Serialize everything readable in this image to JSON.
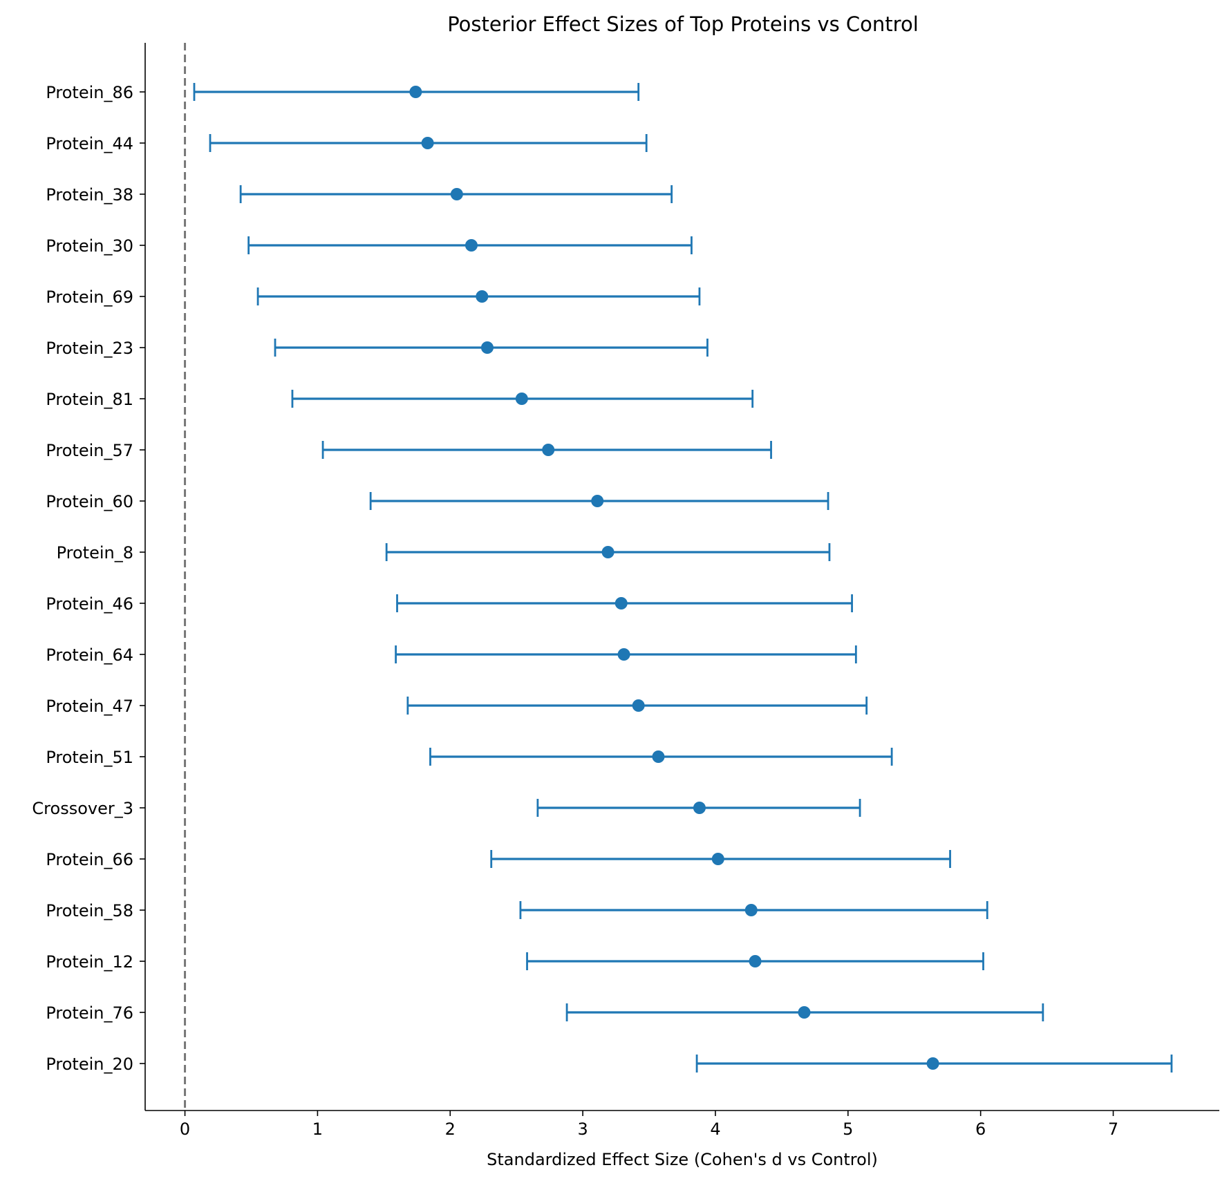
{
  "chart_data": {
    "type": "scatter",
    "title": "Posterior Effect Sizes of Top Proteins vs Control",
    "xlabel": "Standardized Effect Size (Cohen's d vs Control)",
    "ylabel": "",
    "xlim": [
      -0.3,
      7.8
    ],
    "xticks": [
      "0",
      "1",
      "2",
      "3",
      "4",
      "5",
      "6",
      "7"
    ],
    "reference_line": {
      "x": 0,
      "style": "dashed",
      "color": "#777777"
    },
    "grid": false,
    "legend": "none",
    "colors": {
      "series": "#1f77b4",
      "axis": "#000000"
    },
    "points": [
      {
        "label": "Protein_86",
        "mean": 1.74,
        "lower": 0.07,
        "upper": 3.42
      },
      {
        "label": "Protein_44",
        "mean": 1.83,
        "lower": 0.19,
        "upper": 3.48
      },
      {
        "label": "Protein_38",
        "mean": 2.05,
        "lower": 0.42,
        "upper": 3.67
      },
      {
        "label": "Protein_30",
        "mean": 2.16,
        "lower": 0.48,
        "upper": 3.82
      },
      {
        "label": "Protein_69",
        "mean": 2.24,
        "lower": 0.55,
        "upper": 3.88
      },
      {
        "label": "Protein_23",
        "mean": 2.28,
        "lower": 0.68,
        "upper": 3.94
      },
      {
        "label": "Protein_81",
        "mean": 2.54,
        "lower": 0.81,
        "upper": 4.28
      },
      {
        "label": "Protein_57",
        "mean": 2.74,
        "lower": 1.04,
        "upper": 4.42
      },
      {
        "label": "Protein_60",
        "mean": 3.11,
        "lower": 1.4,
        "upper": 4.85
      },
      {
        "label": "Protein_8",
        "mean": 3.19,
        "lower": 1.52,
        "upper": 4.86
      },
      {
        "label": "Protein_46",
        "mean": 3.29,
        "lower": 1.6,
        "upper": 5.03
      },
      {
        "label": "Protein_64",
        "mean": 3.31,
        "lower": 1.59,
        "upper": 5.06
      },
      {
        "label": "Protein_47",
        "mean": 3.42,
        "lower": 1.68,
        "upper": 5.14
      },
      {
        "label": "Protein_51",
        "mean": 3.57,
        "lower": 1.85,
        "upper": 5.33
      },
      {
        "label": "Crossover_3",
        "mean": 3.88,
        "lower": 2.66,
        "upper": 5.09
      },
      {
        "label": "Protein_66",
        "mean": 4.02,
        "lower": 2.31,
        "upper": 5.77
      },
      {
        "label": "Protein_58",
        "mean": 4.27,
        "lower": 2.53,
        "upper": 6.05
      },
      {
        "label": "Protein_12",
        "mean": 4.3,
        "lower": 2.58,
        "upper": 6.02
      },
      {
        "label": "Protein_76",
        "mean": 4.67,
        "lower": 2.88,
        "upper": 6.47
      },
      {
        "label": "Protein_20",
        "mean": 5.64,
        "lower": 3.86,
        "upper": 7.44
      }
    ]
  }
}
